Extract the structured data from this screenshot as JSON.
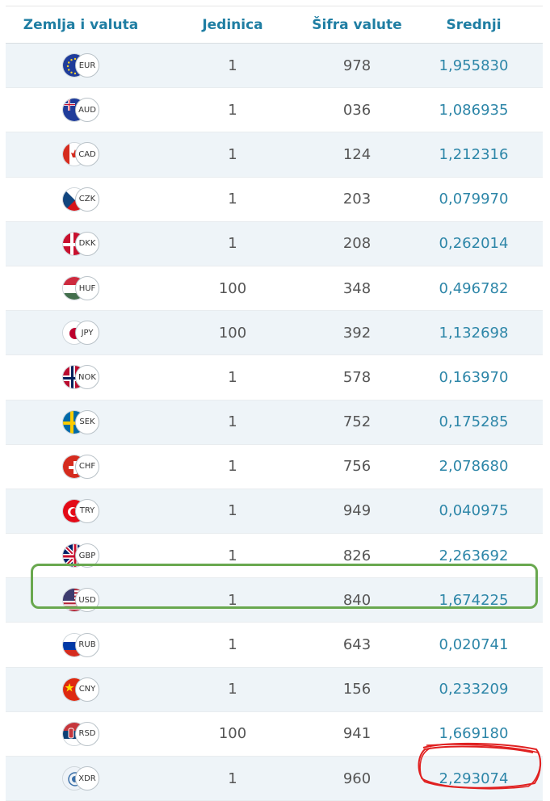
{
  "table": {
    "headers": [
      "Zemlja i valuta",
      "Jedinica",
      "Šifra valute",
      "Srednji"
    ],
    "rows": [
      {
        "code": "EUR",
        "unit": "1",
        "num": "978",
        "rate": "1,955830",
        "flag": "eu-flag-icon"
      },
      {
        "code": "AUD",
        "unit": "1",
        "num": "036",
        "rate": "1,086935",
        "flag": "australia-flag-icon"
      },
      {
        "code": "CAD",
        "unit": "1",
        "num": "124",
        "rate": "1,212316",
        "flag": "canada-flag-icon"
      },
      {
        "code": "CZK",
        "unit": "1",
        "num": "203",
        "rate": "0,079970",
        "flag": "czech-flag-icon"
      },
      {
        "code": "DKK",
        "unit": "1",
        "num": "208",
        "rate": "0,262014",
        "flag": "denmark-flag-icon"
      },
      {
        "code": "HUF",
        "unit": "100",
        "num": "348",
        "rate": "0,496782",
        "flag": "hungary-flag-icon"
      },
      {
        "code": "JPY",
        "unit": "100",
        "num": "392",
        "rate": "1,132698",
        "flag": "japan-flag-icon"
      },
      {
        "code": "NOK",
        "unit": "1",
        "num": "578",
        "rate": "0,163970",
        "flag": "norway-flag-icon"
      },
      {
        "code": "SEK",
        "unit": "1",
        "num": "752",
        "rate": "0,175285",
        "flag": "sweden-flag-icon"
      },
      {
        "code": "CHF",
        "unit": "1",
        "num": "756",
        "rate": "2,078680",
        "flag": "switzerland-flag-icon"
      },
      {
        "code": "TRY",
        "unit": "1",
        "num": "949",
        "rate": "0,040975",
        "flag": "turkey-flag-icon"
      },
      {
        "code": "GBP",
        "unit": "1",
        "num": "826",
        "rate": "2,263692",
        "flag": "uk-flag-icon"
      },
      {
        "code": "USD",
        "unit": "1",
        "num": "840",
        "rate": "1,674225",
        "flag": "usa-flag-icon"
      },
      {
        "code": "RUB",
        "unit": "1",
        "num": "643",
        "rate": "0,020741",
        "flag": "russia-flag-icon"
      },
      {
        "code": "CNY",
        "unit": "1",
        "num": "156",
        "rate": "0,233209",
        "flag": "china-flag-icon"
      },
      {
        "code": "RSD",
        "unit": "100",
        "num": "941",
        "rate": "1,669180",
        "flag": "serbia-flag-icon"
      },
      {
        "code": "XDR",
        "unit": "1",
        "num": "960",
        "rate": "2,293074",
        "flag": "imf-emblem-icon"
      }
    ]
  },
  "annotations": {
    "green_highlight_row": "USD",
    "green_color": "#69a84f",
    "red_scribble_color": "#e02020"
  },
  "colors": {
    "header_text": "#1f7ea3",
    "rate_text": "#2d86a8",
    "stripe": "#eef4f8"
  }
}
